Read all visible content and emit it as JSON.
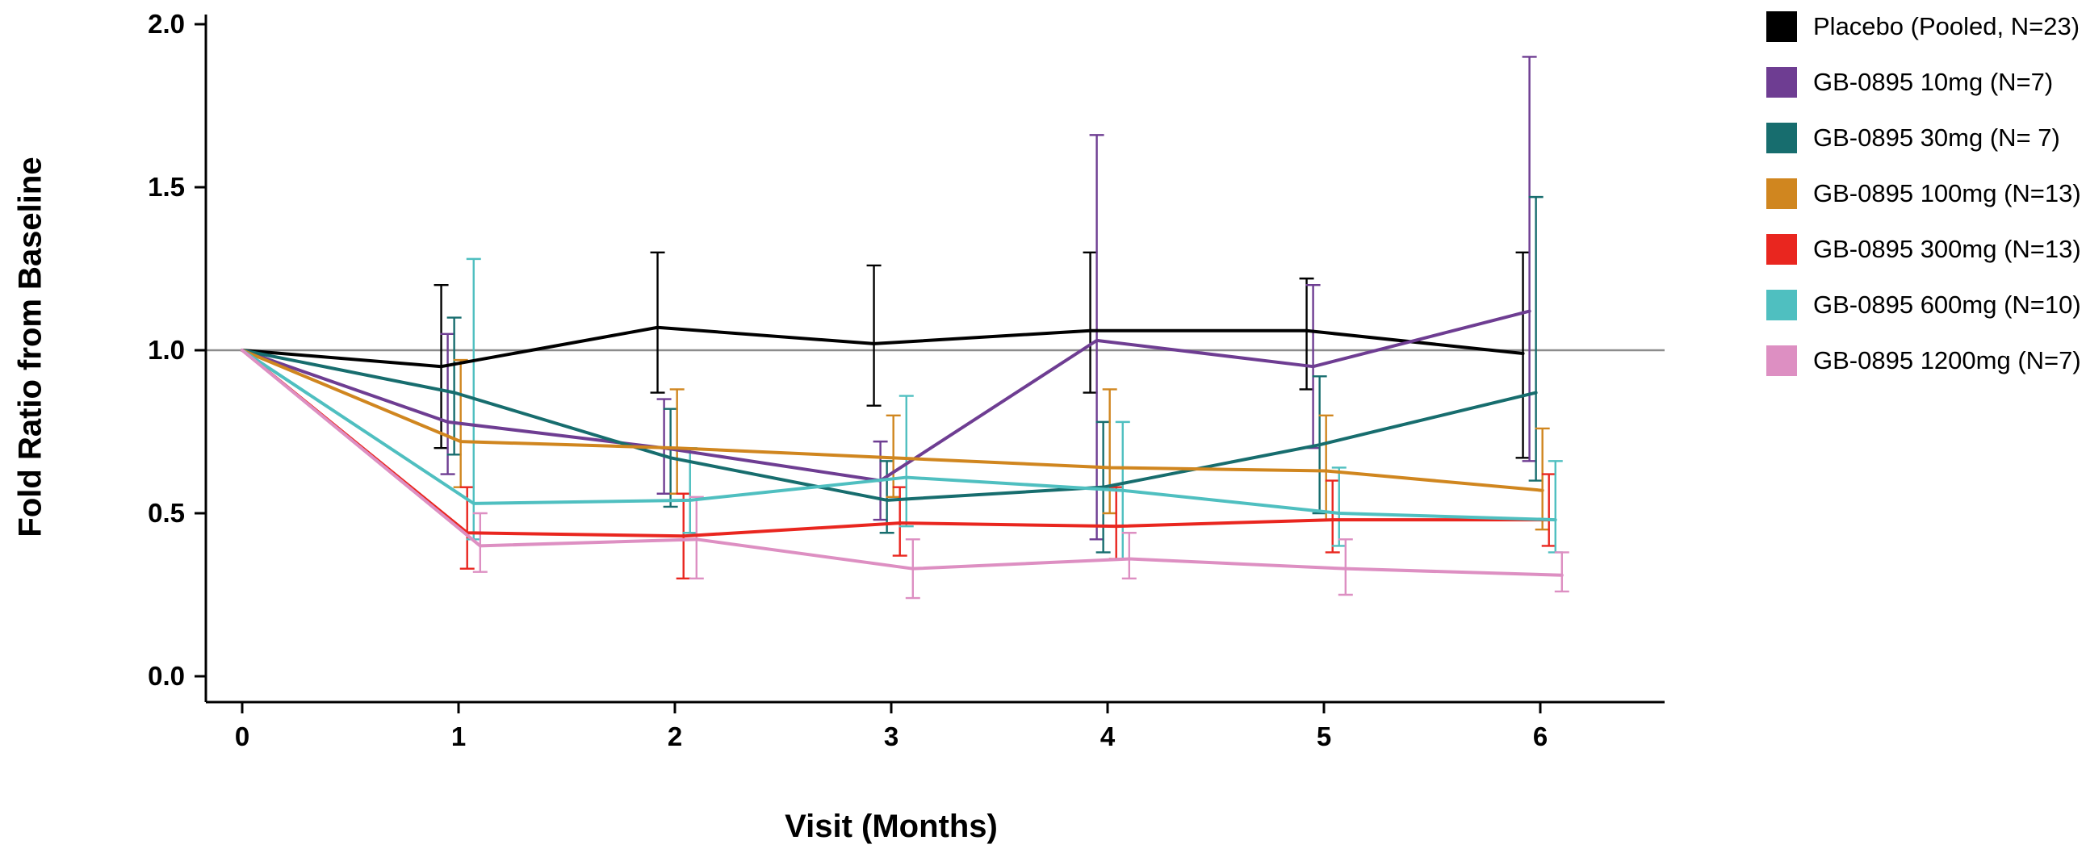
{
  "chart_data": {
    "type": "line",
    "title": "",
    "xlabel": "Visit (Months)",
    "ylabel": "Fold Ratio from Baseline",
    "x": [
      0,
      1,
      2,
      3,
      4,
      5,
      6
    ],
    "x_ticks": [
      "0",
      "1",
      "2",
      "3",
      "4",
      "5",
      "6"
    ],
    "y_ticks": [
      "0.0",
      "0.5",
      "1.0",
      "1.5",
      "2.0"
    ],
    "y_tick_values": [
      0.0,
      0.5,
      1.0,
      1.5,
      2.0
    ],
    "ylim": [
      0.0,
      2.0
    ],
    "grid": false,
    "legend_position": "right",
    "reference_line_y": 1.0,
    "reference_line_color": "#8c8c8c",
    "series": [
      {
        "name": "Placebo (Pooled, N=23)",
        "color": "#000000",
        "values": [
          1.0,
          0.95,
          1.07,
          1.02,
          1.06,
          1.06,
          0.99
        ],
        "err_lo": [
          null,
          0.7,
          0.87,
          0.83,
          0.87,
          0.88,
          0.67
        ],
        "err_hi": [
          null,
          1.2,
          1.3,
          1.26,
          1.3,
          1.22,
          1.3
        ],
        "x_offset": -0.08
      },
      {
        "name": "GB-0895 10mg (N=7)",
        "color": "#6E3D92",
        "values": [
          1.0,
          0.78,
          0.7,
          0.6,
          1.03,
          0.95,
          1.12
        ],
        "err_lo": [
          null,
          0.62,
          0.56,
          0.48,
          0.42,
          0.7,
          0.66
        ],
        "err_hi": [
          null,
          1.05,
          0.85,
          0.72,
          1.66,
          1.2,
          1.9
        ],
        "x_offset": -0.05
      },
      {
        "name": "GB-0895 30mg (N= 7)",
        "color": "#176D6E",
        "values": [
          1.0,
          0.87,
          0.67,
          0.54,
          0.58,
          0.71,
          0.87
        ],
        "err_lo": [
          null,
          0.68,
          0.52,
          0.44,
          0.38,
          0.5,
          0.6
        ],
        "err_hi": [
          null,
          1.1,
          0.82,
          0.66,
          0.78,
          0.92,
          1.47
        ],
        "x_offset": -0.02
      },
      {
        "name": "GB-0895 100mg (N=13)",
        "color": "#D0861F",
        "values": [
          1.0,
          0.72,
          0.7,
          0.67,
          0.64,
          0.63,
          0.57
        ],
        "err_lo": [
          null,
          0.58,
          0.56,
          0.55,
          0.5,
          0.48,
          0.45
        ],
        "err_hi": [
          null,
          0.97,
          0.88,
          0.8,
          0.88,
          0.8,
          0.76
        ],
        "x_offset": 0.01
      },
      {
        "name": "GB-0895 300mg (N=13)",
        "color": "#E9261F",
        "values": [
          1.0,
          0.44,
          0.43,
          0.47,
          0.46,
          0.48,
          0.48
        ],
        "err_lo": [
          null,
          0.33,
          0.3,
          0.37,
          0.36,
          0.38,
          0.4
        ],
        "err_hi": [
          null,
          0.58,
          0.56,
          0.58,
          0.58,
          0.6,
          0.62
        ],
        "x_offset": 0.04
      },
      {
        "name": "GB-0895 600mg (N=10)",
        "color": "#4FBFC0",
        "values": [
          1.0,
          0.53,
          0.54,
          0.61,
          0.57,
          0.5,
          0.48
        ],
        "err_lo": [
          null,
          0.42,
          0.44,
          0.46,
          0.36,
          0.4,
          0.38
        ],
        "err_hi": [
          null,
          1.28,
          0.7,
          0.86,
          0.78,
          0.64,
          0.66
        ],
        "x_offset": 0.07
      },
      {
        "name": "GB-0895 1200mg (N=7)",
        "color": "#DD8FC2",
        "values": [
          1.0,
          0.4,
          0.42,
          0.33,
          0.36,
          0.33,
          0.31
        ],
        "err_lo": [
          null,
          0.32,
          0.3,
          0.24,
          0.3,
          0.25,
          0.26
        ],
        "err_hi": [
          null,
          0.5,
          0.55,
          0.42,
          0.44,
          0.42,
          0.38
        ],
        "x_offset": 0.1
      }
    ]
  }
}
